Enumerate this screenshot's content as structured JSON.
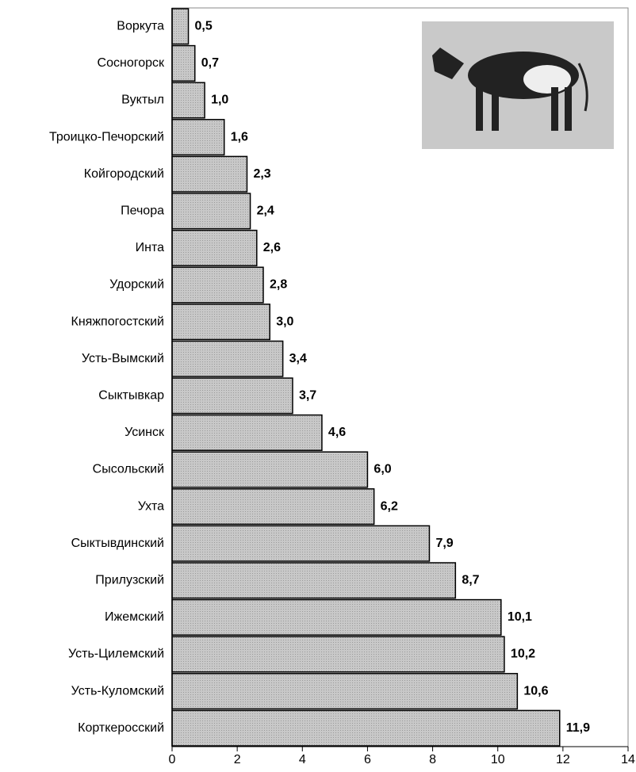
{
  "chart_data": {
    "type": "bar",
    "orientation": "horizontal",
    "categories": [
      "Воркута",
      "Сосногорск",
      "Вуктыл",
      "Троицко-Печорский",
      "Койгородский",
      "Печора",
      "Инта",
      "Удорский",
      "Княжпогостский",
      "Усть-Вымский",
      "Сыктывкар",
      "Усинск",
      "Сысольский",
      "Ухта",
      "Сыктывдинский",
      "Прилузский",
      "Ижемский",
      "Усть-Цилемский",
      "Усть-Куломский",
      "Корткеросский"
    ],
    "values": [
      0.5,
      0.7,
      1.0,
      1.6,
      2.3,
      2.4,
      2.6,
      2.8,
      3.0,
      3.4,
      3.7,
      4.6,
      6.0,
      6.2,
      7.9,
      8.7,
      10.1,
      10.2,
      10.6,
      11.9
    ],
    "value_labels": [
      "0,5",
      "0,7",
      "1,0",
      "1,6",
      "2,3",
      "2,4",
      "2,6",
      "2,8",
      "3,0",
      "3,4",
      "3,7",
      "4,6",
      "6,0",
      "6,2",
      "7,9",
      "8,7",
      "10,1",
      "10,2",
      "10,6",
      "11,9"
    ],
    "color": "#c4c4c4",
    "xlim": [
      0,
      14
    ],
    "xticks": [
      0,
      2,
      4,
      6,
      8,
      10,
      12,
      14
    ]
  }
}
